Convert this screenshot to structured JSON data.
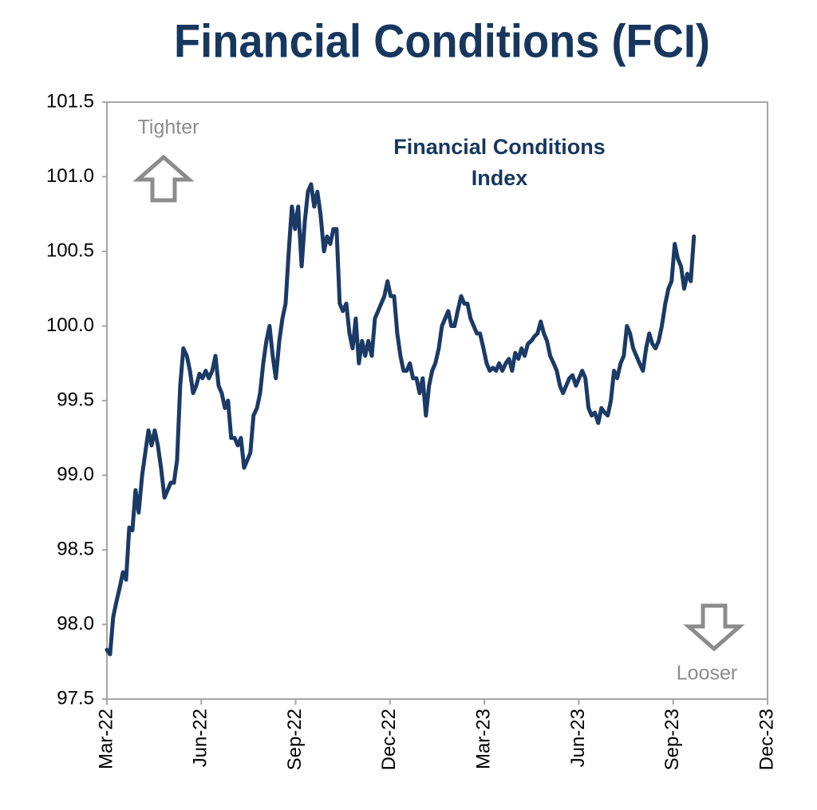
{
  "chart_data": {
    "type": "line",
    "title": "Financial Conditions (FCI)",
    "annotations": {
      "series_label": [
        "Financial Conditions",
        "Index"
      ],
      "top": "Tighter",
      "bottom": "Looser"
    },
    "xlim": [
      0,
      21
    ],
    "xticks": [
      {
        "value": 0,
        "label": "Mar-22"
      },
      {
        "value": 3,
        "label": "Jun-22"
      },
      {
        "value": 6,
        "label": "Sep-22"
      },
      {
        "value": 9,
        "label": "Dec-22"
      },
      {
        "value": 12,
        "label": "Mar-23"
      },
      {
        "value": 15,
        "label": "Jun-23"
      },
      {
        "value": 18,
        "label": "Sep-23"
      },
      {
        "value": 21,
        "label": "Dec-23"
      }
    ],
    "ylim": [
      97.5,
      101.5
    ],
    "yticks": [
      97.5,
      {
        "value": 98,
        "label": "98.0"
      },
      98.5,
      {
        "value": 99,
        "label": "99.0"
      },
      99.5,
      {
        "value": 100,
        "label": "100.0"
      },
      100.5,
      {
        "value": 101,
        "label": "101.0"
      },
      101.5
    ],
    "x": [
      0,
      0.1,
      0.2,
      0.3,
      0.41,
      0.51,
      0.61,
      0.71,
      0.81,
      0.91,
      1.01,
      1.12,
      1.22,
      1.32,
      1.42,
      1.52,
      1.62,
      1.72,
      1.83,
      1.93,
      2.03,
      2.13,
      2.23,
      2.33,
      2.43,
      2.54,
      2.64,
      2.74,
      2.84,
      2.94,
      3.04,
      3.14,
      3.24,
      3.35,
      3.45,
      3.55,
      3.65,
      3.75,
      3.85,
      3.95,
      4.06,
      4.16,
      4.26,
      4.36,
      4.46,
      4.56,
      4.66,
      4.77,
      4.87,
      4.97,
      5.07,
      5.17,
      5.27,
      5.37,
      5.48,
      5.58,
      5.68,
      5.78,
      5.88,
      5.98,
      6.08,
      6.19,
      6.29,
      6.39,
      6.49,
      6.59,
      6.69,
      6.79,
      6.9,
      7.0,
      7.1,
      7.2,
      7.3,
      7.4,
      7.5,
      7.61,
      7.71,
      7.81,
      7.91,
      8.01,
      8.11,
      8.21,
      8.31,
      8.42,
      8.52,
      8.62,
      8.72,
      8.82,
      8.92,
      9.02,
      9.13,
      9.23,
      9.33,
      9.43,
      9.53,
      9.63,
      9.73,
      9.84,
      9.94,
      10.04,
      10.14,
      10.24,
      10.34,
      10.44,
      10.55,
      10.65,
      10.75,
      10.85,
      10.95,
      11.05,
      11.15,
      11.26,
      11.36,
      11.46,
      11.56,
      11.66,
      11.76,
      11.86,
      11.97,
      12.07,
      12.17,
      12.27,
      12.37,
      12.47,
      12.57,
      12.68,
      12.78,
      12.88,
      12.98,
      13.08,
      13.18,
      13.28,
      13.38,
      13.49,
      13.59,
      13.69,
      13.79,
      13.89,
      13.99,
      14.09,
      14.2,
      14.3,
      14.4,
      14.5,
      14.6,
      14.7,
      14.8,
      14.91,
      15.01,
      15.11,
      15.21,
      15.31,
      15.41,
      15.51,
      15.62,
      15.72,
      15.82,
      15.92,
      16.02,
      16.12,
      16.22,
      16.33,
      16.43,
      16.53,
      16.63,
      16.73,
      16.83,
      16.93,
      17.04,
      17.14,
      17.24,
      17.34,
      17.44,
      17.54,
      17.64,
      17.75,
      17.85,
      17.95,
      18.05,
      18.15,
      18.25,
      18.35,
      18.45,
      18.56,
      18.66
    ],
    "series": [
      {
        "color": "#1b3a66",
        "values": [
          97.83,
          97.8,
          98.05,
          98.15,
          98.25,
          98.35,
          98.3,
          98.65,
          98.63,
          98.9,
          98.75,
          99.0,
          99.15,
          99.3,
          99.2,
          99.3,
          99.2,
          99.05,
          98.85,
          98.9,
          98.95,
          98.95,
          99.1,
          99.6,
          99.85,
          99.8,
          99.7,
          99.55,
          99.6,
          99.68,
          99.65,
          99.7,
          99.65,
          99.7,
          99.8,
          99.6,
          99.55,
          99.45,
          99.5,
          99.25,
          99.25,
          99.2,
          99.25,
          99.05,
          99.1,
          99.15,
          99.4,
          99.45,
          99.55,
          99.75,
          99.9,
          100.0,
          99.8,
          99.65,
          99.9,
          100.05,
          100.15,
          100.5,
          100.8,
          100.65,
          100.8,
          100.4,
          100.7,
          100.9,
          100.95,
          100.8,
          100.9,
          100.75,
          100.5,
          100.6,
          100.55,
          100.65,
          100.65,
          100.15,
          100.1,
          100.15,
          99.95,
          99.85,
          100.05,
          99.75,
          99.9,
          99.8,
          99.9,
          99.8,
          100.05,
          100.1,
          100.15,
          100.2,
          100.3,
          100.2,
          100.2,
          99.95,
          99.8,
          99.7,
          99.7,
          99.75,
          99.65,
          99.65,
          99.55,
          99.65,
          99.4,
          99.6,
          99.7,
          99.75,
          99.85,
          100.0,
          100.05,
          100.1,
          100.0,
          100.0,
          100.1,
          100.2,
          100.15,
          100.15,
          100.05,
          100.0,
          99.95,
          99.95,
          99.85,
          99.75,
          99.7,
          99.72,
          99.7,
          99.75,
          99.7,
          99.75,
          99.78,
          99.7,
          99.82,
          99.78,
          99.85,
          99.8,
          99.88,
          99.9,
          99.93,
          99.95,
          100.03,
          99.95,
          99.9,
          99.8,
          99.75,
          99.7,
          99.6,
          99.55,
          99.6,
          99.65,
          99.67,
          99.6,
          99.65,
          99.7,
          99.65,
          99.45,
          99.4,
          99.42,
          99.35,
          99.45,
          99.42,
          99.4,
          99.5,
          99.7,
          99.65,
          99.75,
          99.8,
          100.0,
          99.95,
          99.85,
          99.8,
          99.75,
          99.7,
          99.85,
          99.95,
          99.88,
          99.85,
          99.9,
          100.0,
          100.15,
          100.25,
          100.3,
          100.55,
          100.45,
          100.4,
          100.25,
          100.35,
          100.3,
          100.6
        ]
      }
    ]
  }
}
